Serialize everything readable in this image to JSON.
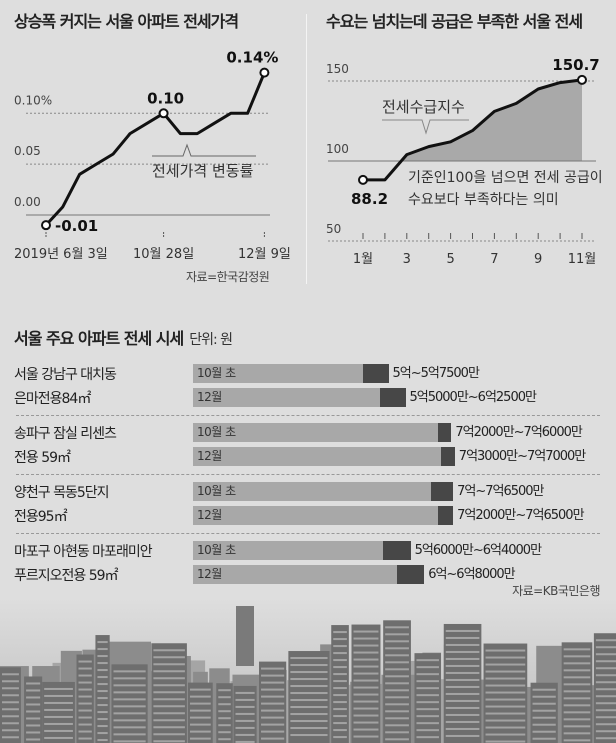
{
  "chart_data": [
    {
      "type": "line",
      "title": "상승폭 커지는 서울 아파트 전세가격",
      "series_label": "전세가격 변동률",
      "x_ticks": [
        {
          "i": 0,
          "label": "2019년 6월 3일"
        },
        {
          "i": 7,
          "label": "10월 28일"
        },
        {
          "i": 13,
          "label": "12월 9일"
        }
      ],
      "y_ticks": [
        {
          "v": 0.1,
          "label": "0.10%"
        },
        {
          "v": 0.05,
          "label": "0.05"
        },
        {
          "v": 0.0,
          "label": "0.00"
        }
      ],
      "ylim": [
        -0.015,
        0.15
      ],
      "x": [
        0,
        1,
        2,
        3,
        4,
        5,
        7,
        8,
        9,
        10,
        11,
        12,
        13
      ],
      "values": [
        -0.01,
        0.008,
        0.04,
        0.05,
        0.06,
        0.08,
        0.1,
        0.08,
        0.08,
        0.09,
        0.1,
        0.1,
        0.14
      ],
      "annotations": [
        {
          "i": 0,
          "label": "-0.01"
        },
        {
          "i": 7,
          "label": "0.10"
        },
        {
          "i": 13,
          "label": "0.14%"
        }
      ],
      "source": "자료=한국감정원"
    },
    {
      "type": "area",
      "title": "수요는 넘치는데 공급은 부족한 서울 전세",
      "series_label": "전세수급지수",
      "x": [
        1,
        2,
        3,
        4,
        5,
        6,
        7,
        8,
        9,
        10,
        11
      ],
      "values": [
        88.2,
        88.2,
        104,
        109,
        112,
        119,
        131,
        136,
        145,
        149,
        150.7
      ],
      "x_ticks": [
        {
          "v": 1,
          "label": "1월"
        },
        {
          "v": 3,
          "label": "3"
        },
        {
          "v": 5,
          "label": "5"
        },
        {
          "v": 7,
          "label": "7"
        },
        {
          "v": 9,
          "label": "9"
        },
        {
          "v": 11,
          "label": "11월"
        }
      ],
      "y_ticks": [
        {
          "v": 150,
          "label": "150"
        },
        {
          "v": 100,
          "label": "100"
        },
        {
          "v": 50,
          "label": "50"
        }
      ],
      "ylim": [
        50,
        155
      ],
      "annotations": [
        {
          "x": 1,
          "label": "88.2"
        },
        {
          "x": 11,
          "label": "150.7"
        }
      ],
      "note_lines": [
        "기준인100을 넘으면 전세 공급이",
        "수요보다 부족하다는 의미"
      ]
    },
    {
      "type": "bar-range",
      "title": "서울 주요 아파트 전세 시세",
      "unit": "단위: 원",
      "source": "자료=KB국민은행",
      "groups": [
        {
          "name1": "서울 강남구 대치동",
          "name2": "은마전용84㎡",
          "rows": [
            {
              "period": "10월 초",
              "low": 5.0,
              "high": 5.75,
              "label": "5억~5억7500만"
            },
            {
              "period": "12월",
              "low": 5.5,
              "high": 6.25,
              "label": "5억5000만~6억2500만"
            }
          ]
        },
        {
          "name1": "송파구 잠실 리센츠",
          "name2": "전용 59㎡",
          "rows": [
            {
              "period": "10월 초",
              "low": 7.2,
              "high": 7.6,
              "label": "7억2000만~7억6000만"
            },
            {
              "period": "12월",
              "low": 7.3,
              "high": 7.7,
              "label": "7억3000만~7억7000만"
            }
          ]
        },
        {
          "name1": "양천구 목동5단지",
          "name2": "전용95㎡",
          "rows": [
            {
              "period": "10월 초",
              "low": 7.0,
              "high": 7.65,
              "label": "7억~7억6500만"
            },
            {
              "period": "12월",
              "low": 7.2,
              "high": 7.65,
              "label": "7억2000만~7억6500만"
            }
          ]
        },
        {
          "name1": "마포구 아현동 마포래미안",
          "name2": "푸르지오전용 59㎡",
          "rows": [
            {
              "period": "10월 초",
              "low": 5.6,
              "high": 6.4,
              "label": "5억6000만~6억4000만"
            },
            {
              "period": "12월",
              "low": 6.0,
              "high": 6.8,
              "label": "6억~6억8000만"
            }
          ]
        }
      ]
    }
  ]
}
